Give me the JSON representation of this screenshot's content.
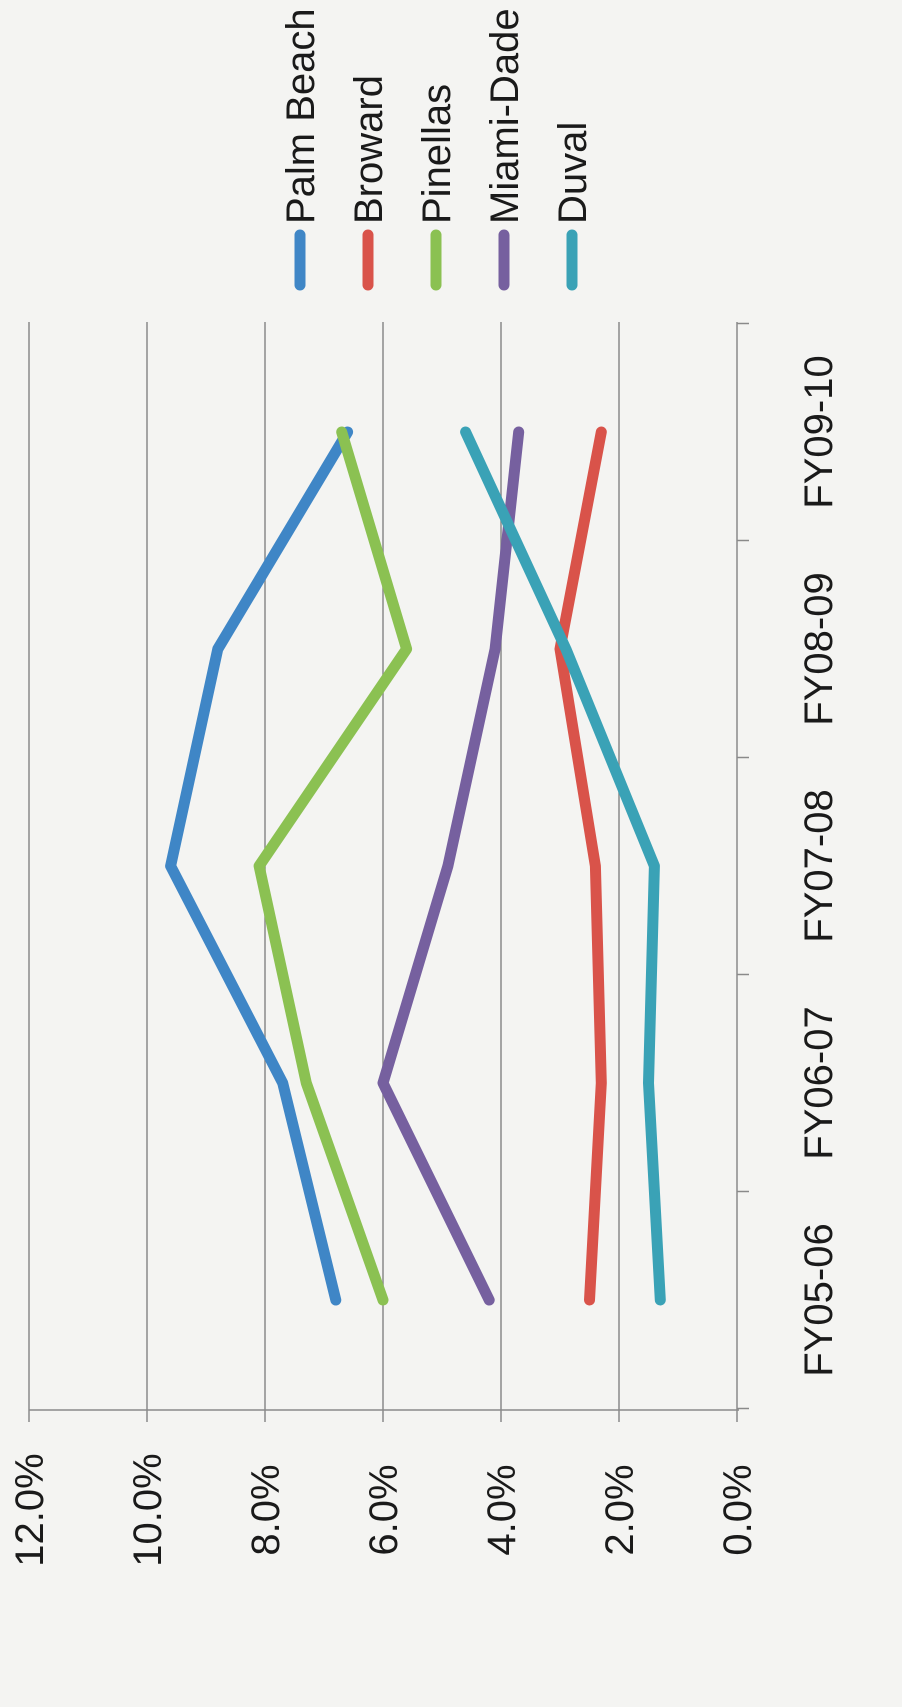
{
  "chart_data": {
    "type": "line",
    "orientation": "rotated-90-clockwise",
    "categories": [
      "FY05-06",
      "FY06-07",
      "FY07-08",
      "FY08-09",
      "FY09-10"
    ],
    "yticks": [
      "0.0%",
      "2.0%",
      "4.0%",
      "6.0%",
      "8.0%",
      "10.0%",
      "12.0%"
    ],
    "ylim": [
      0,
      12
    ],
    "grid": true,
    "legend_position": "right",
    "series": [
      {
        "name": "Palm Beach",
        "color": "#3f86c6",
        "values": [
          6.8,
          7.7,
          9.6,
          8.8,
          6.6
        ]
      },
      {
        "name": "Broward",
        "color": "#d9534a",
        "values": [
          2.5,
          2.3,
          2.4,
          3.0,
          2.3
        ]
      },
      {
        "name": "Pinellas",
        "color": "#8bc152",
        "values": [
          6.0,
          7.3,
          8.1,
          5.6,
          6.7
        ]
      },
      {
        "name": "Miami-Dade",
        "color": "#76609f",
        "values": [
          4.2,
          6.0,
          4.9,
          4.1,
          3.7
        ]
      },
      {
        "name": "Duval",
        "color": "#3aa2b6",
        "values": [
          1.3,
          1.5,
          1.4,
          2.9,
          4.6
        ]
      }
    ]
  }
}
